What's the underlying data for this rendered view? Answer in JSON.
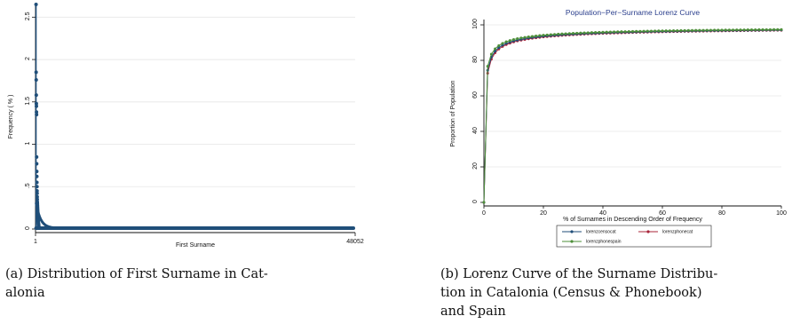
{
  "colors": {
    "navy": "#1f4e79",
    "green": "#4e8f3a",
    "maroon": "#a8243a",
    "grid": "#e6e6e6"
  },
  "chart_data": [
    {
      "type": "scatter",
      "title": "",
      "xlabel": "First Surname",
      "ylabel": "Frequency ( % )",
      "x_tick_labels": [
        "1",
        "48052"
      ],
      "y_ticks": [
        "0",
        ".5",
        "1",
        "1.5",
        "2",
        "2.5"
      ],
      "xlim": [
        1,
        48052
      ],
      "ylim": [
        0,
        2.65
      ],
      "series": [
        {
          "x_rank_head": [
            1,
            2,
            3,
            4,
            5,
            6,
            7,
            8,
            9,
            10,
            11,
            12,
            13,
            14,
            15,
            16,
            17,
            18,
            20,
            22,
            25,
            28,
            32,
            36,
            40,
            45,
            50,
            60,
            70,
            80,
            95,
            110,
            130,
            150,
            175,
            200,
            240,
            280,
            330,
            380,
            450,
            520,
            600,
            700,
            800,
            900,
            1000
          ],
          "values": [
            2.65,
            1.85,
            1.76,
            1.58,
            1.48,
            1.45,
            1.38,
            1.35,
            0.85,
            0.77,
            0.68,
            0.62,
            0.55,
            0.5,
            0.45,
            0.42,
            0.38,
            0.35,
            0.32,
            0.3,
            0.28,
            0.26,
            0.24,
            0.22,
            0.2,
            0.19,
            0.17,
            0.15,
            0.13,
            0.12,
            0.1,
            0.09,
            0.08,
            0.07,
            0.06,
            0.055,
            0.05,
            0.045,
            0.04,
            0.035,
            0.03,
            0.028,
            0.025,
            0.022,
            0.02,
            0.018,
            0.016
          ],
          "tail_value": 0.01
        }
      ]
    },
    {
      "type": "line",
      "title": "Population−Per−Surname Lorenz Curve",
      "xlabel": "% of Surnames in Descending Order of Frequency",
      "ylabel": "Proportion of Population",
      "x_ticks": [
        "0",
        "20",
        "40",
        "60",
        "80",
        "100"
      ],
      "y_ticks": [
        "0",
        "20",
        "40",
        "60",
        "80",
        "100"
      ],
      "xlim": [
        0,
        100
      ],
      "ylim": [
        0,
        100
      ],
      "legend_position": "bottom",
      "series": [
        {
          "name": "lorenzcensocat",
          "color": "#1f4e79",
          "k": 0.32,
          "c": 0.5
        },
        {
          "name": "lorenzphonecat",
          "color": "#a8243a",
          "k": 0.27,
          "c": 0.5
        },
        {
          "name": "lorenzphonespain",
          "color": "#4e8f3a",
          "k": 0.4,
          "c": 0.5
        }
      ]
    }
  ],
  "captions": {
    "left": "(a) Distribution of First Surname in Cat-\nalonia",
    "right": "(b) Lorenz Curve of the Surname Distribu-\ntion in Catalonia (Census & Phonebook)\nand Spain"
  }
}
